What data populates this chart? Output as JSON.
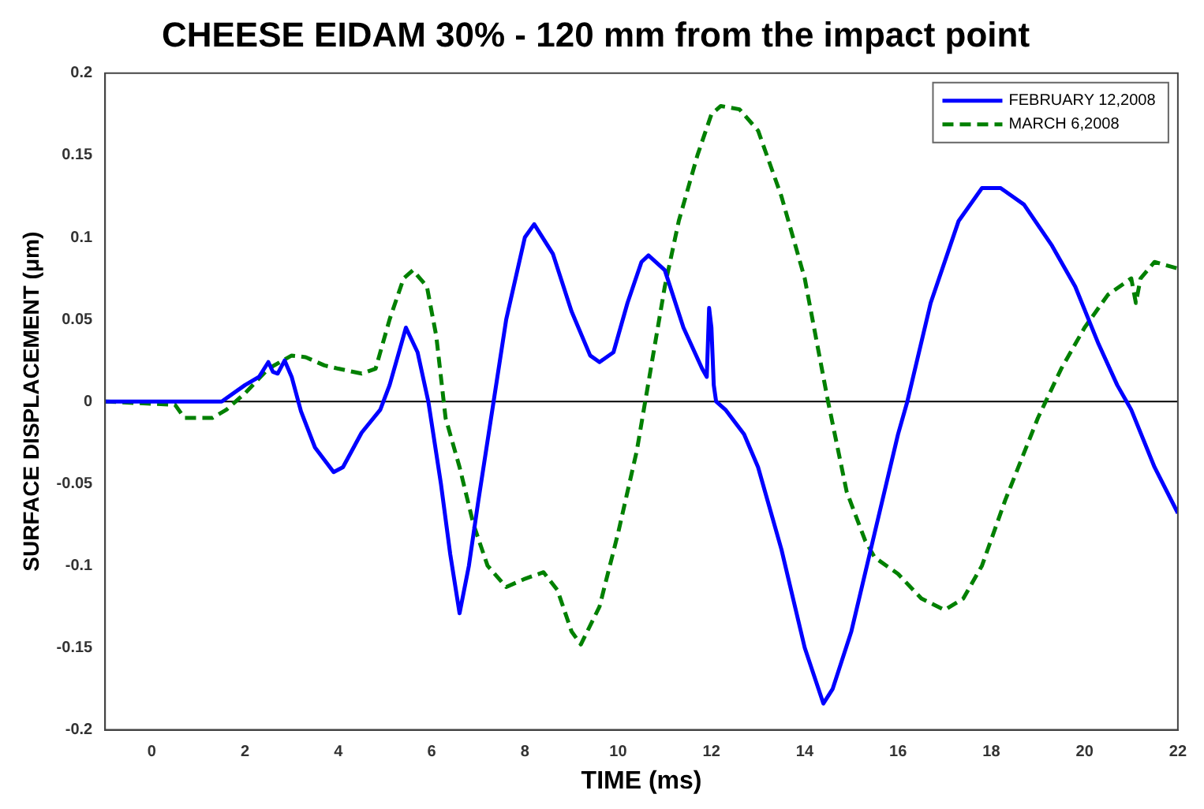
{
  "chart_data": {
    "type": "line",
    "title": "CHEESE EIDAM 30% - 120 mm from the impact point",
    "xlabel": "TIME (ms)",
    "ylabel": "SURFACE DISPLACEMENT (μm)",
    "xlim": [
      -1,
      22
    ],
    "xticks": [
      0,
      2,
      4,
      6,
      8,
      10,
      12,
      14,
      16,
      18,
      20,
      22
    ],
    "ylim": [
      -0.2,
      0.2
    ],
    "yticks": [
      -0.2,
      -0.15,
      -0.1,
      -0.05,
      0,
      0.05,
      0.1,
      0.15,
      0.2
    ],
    "grid": false,
    "legend": "top right",
    "marker": "none",
    "ref_lines": [
      {
        "axis": "y",
        "value": 0,
        "color": "#000000"
      }
    ],
    "series": [
      {
        "name": "FEBRUARY 12,2008",
        "color": "#0000ff",
        "line_style": "solid",
        "x": [
          -1,
          0,
          1,
          1.5,
          2,
          2.3,
          2.5,
          2.6,
          2.7,
          2.85,
          3,
          3.2,
          3.5,
          3.9,
          4.1,
          4.5,
          4.9,
          5.1,
          5.45,
          5.7,
          5.93,
          6.2,
          6.4,
          6.6,
          6.8,
          7,
          7.33,
          7.6,
          8,
          8.2,
          8.6,
          9,
          9.4,
          9.6,
          9.9,
          10.2,
          10.5,
          10.65,
          11,
          11.4,
          11.8,
          11.9,
          11.95,
          12,
          12.05,
          12.1,
          12.3,
          12.7,
          13,
          13.5,
          14,
          14.4,
          14.6,
          15,
          15.5,
          16,
          16.2,
          16.7,
          17.3,
          17.8,
          18.2,
          18.7,
          19.3,
          19.8,
          20.3,
          20.7,
          21,
          21.5,
          22
        ],
        "values": [
          0,
          0,
          0,
          0,
          0.01,
          0.015,
          0.024,
          0.018,
          0.017,
          0.025,
          0.015,
          -0.006,
          -0.028,
          -0.043,
          -0.04,
          -0.019,
          -0.005,
          0.01,
          0.045,
          0.03,
          0,
          -0.05,
          -0.093,
          -0.129,
          -0.1,
          -0.061,
          0,
          0.05,
          0.1,
          0.108,
          0.09,
          0.055,
          0.028,
          0.024,
          0.03,
          0.06,
          0.085,
          0.089,
          0.08,
          0.045,
          0.02,
          0.015,
          0.057,
          0.045,
          0.01,
          0,
          -0.005,
          -0.02,
          -0.04,
          -0.09,
          -0.15,
          -0.184,
          -0.175,
          -0.14,
          -0.08,
          -0.02,
          0,
          0.06,
          0.11,
          0.13,
          0.13,
          0.12,
          0.095,
          0.07,
          0.035,
          0.01,
          -0.005,
          -0.04,
          -0.068
        ]
      },
      {
        "name": "MARCH 6,2008",
        "color": "#008000",
        "line_style": "dashed",
        "x": [
          -1,
          0.5,
          0.7,
          1.3,
          1.6,
          2,
          2.5,
          3,
          3.3,
          3.7,
          4,
          4.5,
          4.8,
          5.1,
          5.4,
          5.6,
          5.9,
          6.1,
          6.3,
          6.6,
          6.9,
          7.2,
          7.6,
          8,
          8.4,
          8.7,
          9,
          9.2,
          9.6,
          10,
          10.4,
          10.7,
          11,
          11.3,
          11.7,
          12,
          12.2,
          12.6,
          13,
          13.5,
          14,
          14.5,
          14.9,
          15.3,
          15.5,
          16,
          16.5,
          17,
          17.4,
          17.8,
          18.3,
          19,
          19.5,
          20,
          20.5,
          21,
          21.1,
          21.2,
          21.5,
          22
        ],
        "values": [
          0,
          -0.002,
          -0.01,
          -0.01,
          -0.005,
          0.005,
          0.02,
          0.028,
          0.027,
          0.022,
          0.02,
          0.017,
          0.02,
          0.05,
          0.075,
          0.08,
          0.07,
          0.04,
          -0.01,
          -0.04,
          -0.075,
          -0.1,
          -0.113,
          -0.108,
          -0.104,
          -0.115,
          -0.14,
          -0.148,
          -0.125,
          -0.08,
          -0.03,
          0.02,
          0.07,
          0.11,
          0.15,
          0.175,
          0.18,
          0.178,
          0.165,
          0.125,
          0.075,
          0,
          -0.055,
          -0.085,
          -0.095,
          -0.105,
          -0.12,
          -0.127,
          -0.12,
          -0.1,
          -0.06,
          -0.01,
          0.02,
          0.045,
          0.065,
          0.075,
          0.06,
          0.075,
          0.085,
          0.081
        ]
      }
    ]
  }
}
